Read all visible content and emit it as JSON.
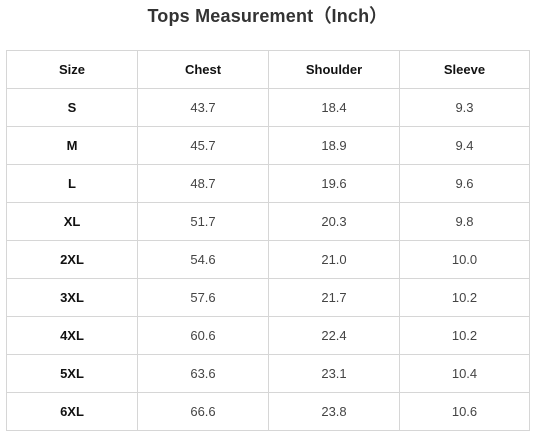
{
  "title": "Tops Measurement（Inch）",
  "table": {
    "headers": [
      "Size",
      "Chest",
      "Shoulder",
      "Sleeve"
    ],
    "rows": [
      [
        "S",
        "43.7",
        "18.4",
        "9.3"
      ],
      [
        "M",
        "45.7",
        "18.9",
        "9.4"
      ],
      [
        "L",
        "48.7",
        "19.6",
        "9.6"
      ],
      [
        "XL",
        "51.7",
        "20.3",
        "9.8"
      ],
      [
        "2XL",
        "54.6",
        "21.0",
        "10.0"
      ],
      [
        "3XL",
        "57.6",
        "21.7",
        "10.2"
      ],
      [
        "4XL",
        "60.6",
        "22.4",
        "10.2"
      ],
      [
        "5XL",
        "63.6",
        "23.1",
        "10.4"
      ],
      [
        "6XL",
        "66.6",
        "23.8",
        "10.6"
      ]
    ]
  }
}
